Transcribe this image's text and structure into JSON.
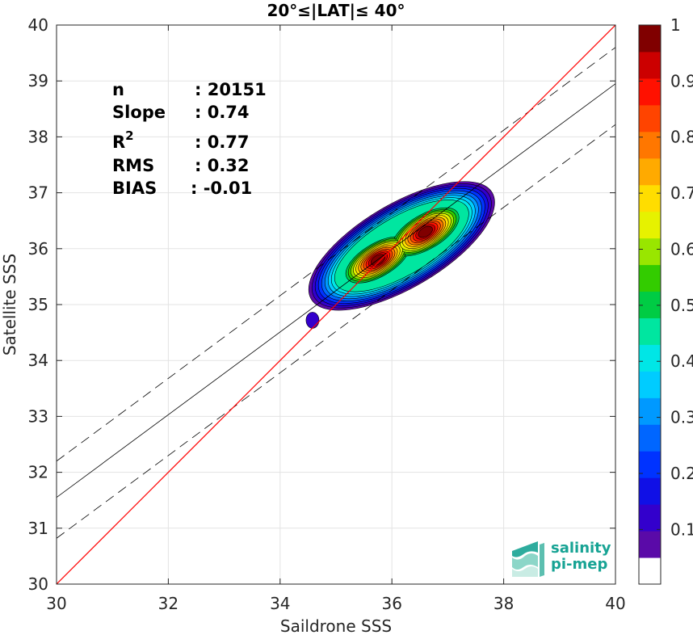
{
  "chart_data": {
    "type": "heatmap",
    "title": "20°≤|LAT|≤ 40°",
    "xlabel": "Saildrone SSS",
    "ylabel": "Satellite SSS",
    "xlim": [
      30,
      40
    ],
    "ylim": [
      30,
      40
    ],
    "x_ticks": [
      "30",
      "32",
      "34",
      "36",
      "38",
      "40"
    ],
    "y_ticks": [
      "30",
      "31",
      "32",
      "33",
      "34",
      "35",
      "36",
      "37",
      "38",
      "39",
      "40"
    ],
    "grid": true,
    "colorbar": {
      "ticks": [
        "0.1",
        "0.2",
        "0.3",
        "0.4",
        "0.5",
        "0.6",
        "0.7",
        "0.8",
        "0.9",
        "1"
      ],
      "levels": [
        0,
        0.05,
        0.1,
        0.15,
        0.2,
        0.25,
        0.3,
        0.35,
        0.4,
        0.45,
        0.5,
        0.55,
        0.6,
        0.65,
        0.7,
        0.75,
        0.8,
        0.85,
        0.9,
        0.95,
        1
      ],
      "colors": [
        "#ffffff",
        "#5a0aa8",
        "#3300cc",
        "#1010e6",
        "#0033ff",
        "#0066ff",
        "#0099ff",
        "#00ccff",
        "#00e6e6",
        "#00e6a0",
        "#00cc44",
        "#33cc00",
        "#99e600",
        "#e6f200",
        "#ffdd00",
        "#ffaa00",
        "#ff7700",
        "#ff4400",
        "#ff1100",
        "#cc0000",
        "#800000"
      ]
    },
    "density_peaks": [
      {
        "x": 35.75,
        "y": 35.8
      },
      {
        "x": 36.6,
        "y": 36.3
      }
    ],
    "lines": {
      "identity": {
        "slope": 1,
        "intercept": 0,
        "color": "#ff0000"
      },
      "fit": {
        "slope": 0.74,
        "intercept": 9.35,
        "color": "#000000"
      },
      "fit_upper": {
        "slope": 0.74,
        "intercept": 10.0
      },
      "fit_lower": {
        "slope": 0.74,
        "intercept": 8.62
      }
    },
    "stats": [
      {
        "label": "n",
        "value": ": 20151"
      },
      {
        "label": "Slope",
        "value": ": 0.74"
      },
      {
        "label": "R",
        "sup": "2",
        "value": ": 0.77"
      },
      {
        "label": "RMS",
        "value": ": 0.32"
      },
      {
        "label": "BIAS",
        "value": ": -0.01"
      }
    ]
  },
  "logo": {
    "line1": "salinity",
    "line2": "pi-mep",
    "color": "#17a394"
  }
}
